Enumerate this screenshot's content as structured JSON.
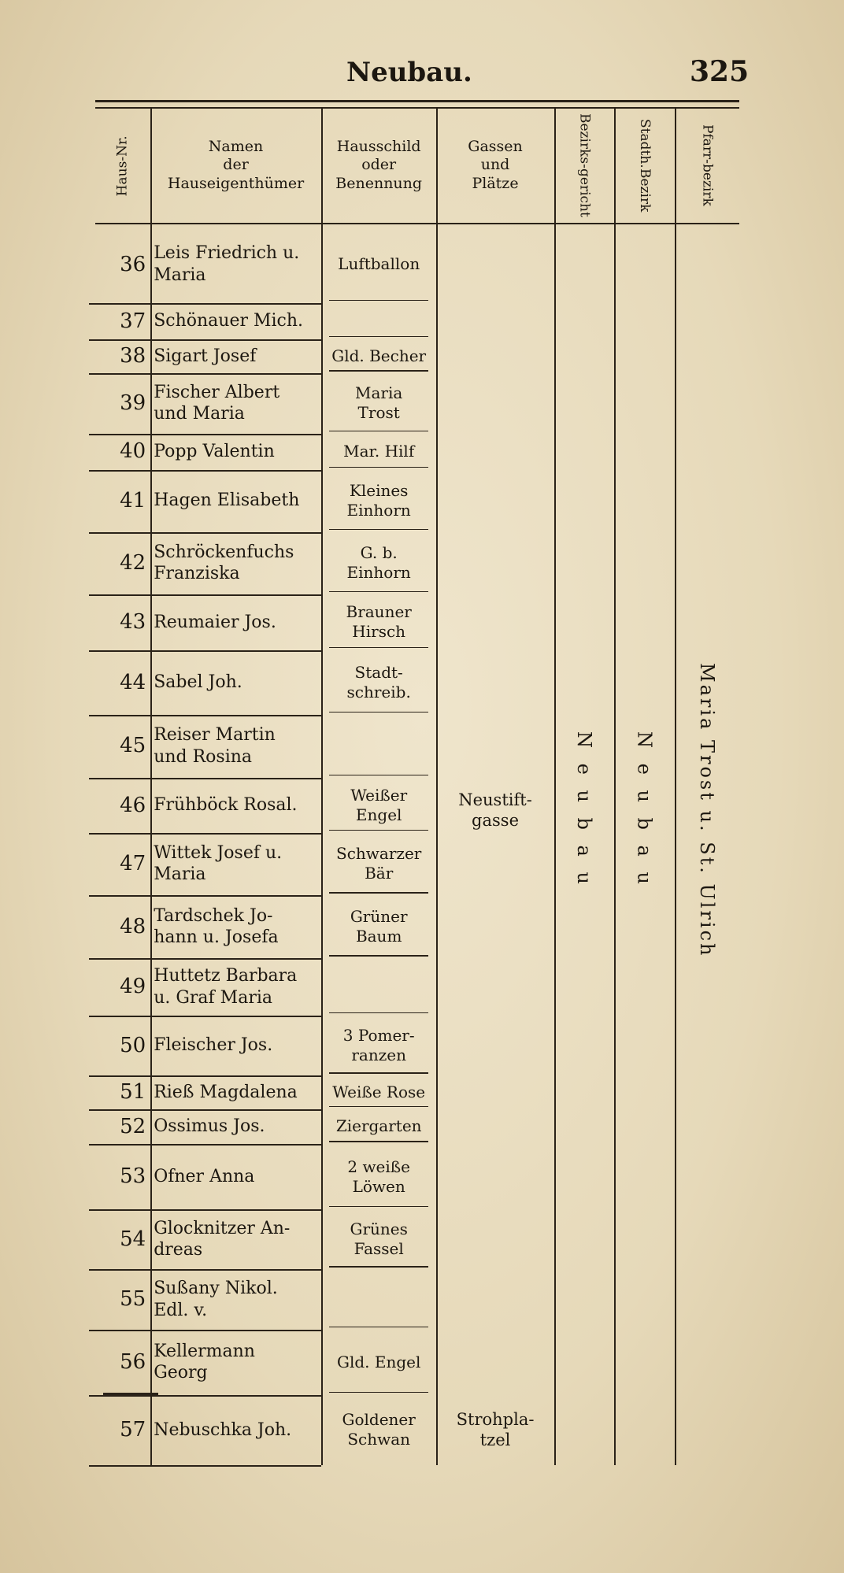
{
  "header": {
    "title": "Neubau.",
    "page": "325"
  },
  "table": {
    "columns": [
      {
        "lines": [
          "Haus-Nr."
        ]
      },
      {
        "lines": [
          "Namen",
          "der",
          "Hauseigenthümer"
        ]
      },
      {
        "lines": [
          "Hausschild",
          "oder",
          "Benennung"
        ]
      },
      {
        "lines": [
          "Gassen",
          "und",
          "Plätze"
        ]
      },
      {
        "lines": [
          "Bezirks-",
          "gericht"
        ]
      },
      {
        "lines": [
          "Stadth.",
          "Bezirk"
        ]
      },
      {
        "lines": [
          "Pfarr-",
          "bezirk"
        ]
      }
    ],
    "rows": [
      {
        "number": 36,
        "owner": [
          "Leis Friedrich u.",
          "Maria"
        ],
        "sign": [
          "Luftballon"
        ]
      },
      {
        "number": 37,
        "owner": [
          "Schönauer Mich."
        ],
        "sign": []
      },
      {
        "number": 38,
        "owner": [
          "Sigart Josef"
        ],
        "sign": [
          "Gld. Becher"
        ]
      },
      {
        "number": 39,
        "owner": [
          "Fischer Albert",
          "und Maria"
        ],
        "sign": [
          "Maria",
          "Trost"
        ]
      },
      {
        "number": 40,
        "owner": [
          "Popp Valentin"
        ],
        "sign": [
          "Mar. Hilf"
        ]
      },
      {
        "number": 41,
        "owner": [
          "Hagen Elisabeth"
        ],
        "sign": [
          "Kleines",
          "Einhorn"
        ]
      },
      {
        "number": 42,
        "owner": [
          "Schröckenfuchs",
          "Franziska"
        ],
        "sign": [
          "G. b.",
          "Einhorn"
        ]
      },
      {
        "number": 43,
        "owner": [
          "Reumaier Jos."
        ],
        "sign": [
          "Brauner",
          "Hirsch"
        ]
      },
      {
        "number": 44,
        "owner": [
          "Sabel Joh."
        ],
        "sign": [
          "Stadt-",
          "schreib."
        ]
      },
      {
        "number": 45,
        "owner": [
          "Reiser Martin",
          "und Rosina"
        ],
        "sign": []
      },
      {
        "number": 46,
        "owner": [
          "Frühböck Rosal."
        ],
        "sign": [
          "Weißer",
          "Engel"
        ]
      },
      {
        "number": 47,
        "owner": [
          "Wittek Josef u.",
          "Maria"
        ],
        "sign": [
          "Schwarzer",
          "Bär"
        ]
      },
      {
        "number": 48,
        "owner": [
          "Tardschek Jo-",
          "hann u. Josefa"
        ],
        "sign": [
          "Grüner",
          "Baum"
        ]
      },
      {
        "number": 49,
        "owner": [
          "Huttetz Barbara",
          "u. Graf Maria"
        ],
        "sign": []
      },
      {
        "number": 50,
        "owner": [
          "Fleischer Jos."
        ],
        "sign": [
          "3 Pomer-",
          "ranzen"
        ]
      },
      {
        "number": 51,
        "owner": [
          "Rieß Magdalena"
        ],
        "sign": [
          "Weiße Rose"
        ]
      },
      {
        "number": 52,
        "owner": [
          "Ossimus Jos."
        ],
        "sign": [
          "Ziergarten"
        ]
      },
      {
        "number": 53,
        "owner": [
          "Ofner Anna"
        ],
        "sign": [
          "2 weiße",
          "Löwen"
        ]
      },
      {
        "number": 54,
        "owner": [
          "Glocknitzer An-",
          "dreas"
        ],
        "sign": [
          "Grünes",
          "Fassel"
        ]
      },
      {
        "number": 55,
        "owner": [
          "Sußany Nikol.",
          "Edl. v."
        ],
        "sign": []
      },
      {
        "number": 56,
        "owner": [
          "Kellermann",
          "Georg"
        ],
        "sign": [
          "Gld. Engel"
        ]
      },
      {
        "number": 57,
        "owner": [
          "Nebuschka Joh."
        ],
        "sign": [
          "Goldener",
          "Schwan"
        ]
      }
    ],
    "streets": [
      {
        "lines": [
          "Neustift-",
          "gasse"
        ]
      },
      {
        "lines": [
          "Strohpla-",
          "tzel"
        ]
      }
    ],
    "district_court": "N e u b a u",
    "city_district": "N e u b a u",
    "parish": "Maria Trost u. St. Ulrich"
  }
}
